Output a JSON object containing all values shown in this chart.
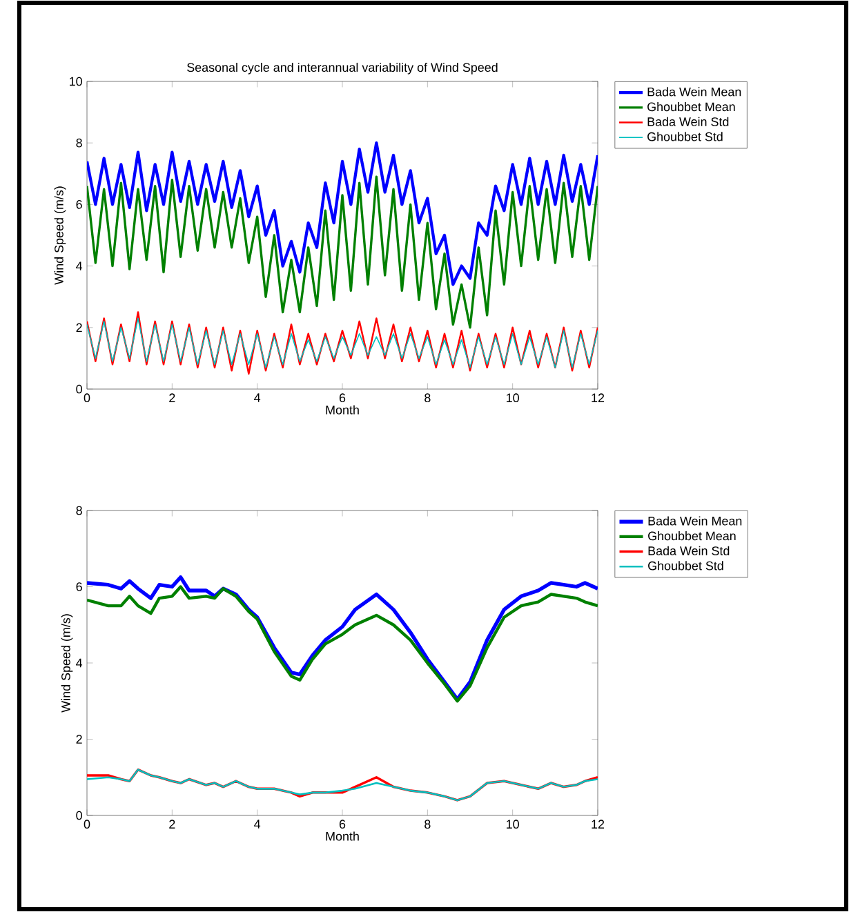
{
  "chart_data": [
    {
      "type": "line",
      "title": "Seasonal cycle and interannual variability of Wind Speed",
      "xlabel": "Month",
      "ylabel": "Wind Speed (m/s)",
      "xlim": [
        0,
        12
      ],
      "ylim": [
        0,
        10
      ],
      "xticks": [
        0,
        2,
        4,
        6,
        8,
        10,
        12
      ],
      "yticks": [
        0,
        2,
        4,
        6,
        8,
        10
      ],
      "grid": false,
      "legend": "right",
      "marker": "none",
      "line_style": "solid",
      "x": [
        0,
        0.2,
        0.4,
        0.6,
        0.8,
        1.0,
        1.2,
        1.4,
        1.6,
        1.8,
        2.0,
        2.2,
        2.4,
        2.6,
        2.8,
        3.0,
        3.2,
        3.4,
        3.6,
        3.8,
        4.0,
        4.2,
        4.4,
        4.6,
        4.8,
        5.0,
        5.2,
        5.4,
        5.6,
        5.8,
        6.0,
        6.2,
        6.4,
        6.6,
        6.8,
        7.0,
        7.2,
        7.4,
        7.6,
        7.8,
        8.0,
        8.2,
        8.4,
        8.6,
        8.8,
        9.0,
        9.2,
        9.4,
        9.6,
        9.8,
        10.0,
        10.2,
        10.4,
        10.6,
        10.8,
        11.0,
        11.2,
        11.4,
        11.6,
        11.8,
        12.0
      ],
      "series": [
        {
          "name": "Bada Wein Mean",
          "color": "#0000ff",
          "values": [
            7.4,
            6.0,
            7.5,
            6.0,
            7.3,
            5.9,
            7.7,
            5.8,
            7.3,
            6.0,
            7.7,
            6.1,
            7.4,
            6.0,
            7.3,
            6.1,
            7.4,
            5.9,
            7.1,
            5.6,
            6.6,
            5.0,
            5.8,
            4.0,
            4.8,
            3.8,
            5.4,
            4.6,
            6.7,
            5.4,
            7.4,
            6.0,
            7.8,
            6.4,
            8.0,
            6.4,
            7.6,
            6.0,
            7.1,
            5.4,
            6.2,
            4.4,
            5.0,
            3.4,
            4.0,
            3.6,
            5.4,
            5.0,
            6.6,
            5.8,
            7.3,
            6.0,
            7.5,
            6.0,
            7.4,
            6.0,
            7.6,
            6.1,
            7.3,
            6.0,
            7.6
          ]
        },
        {
          "name": "Ghoubbet Mean",
          "color": "#008000",
          "values": [
            6.6,
            4.1,
            6.5,
            4.0,
            6.7,
            3.9,
            6.5,
            4.2,
            6.6,
            3.8,
            6.8,
            4.3,
            6.6,
            4.5,
            6.5,
            4.6,
            6.4,
            4.6,
            6.2,
            4.1,
            5.6,
            3.0,
            5.0,
            2.5,
            4.2,
            2.5,
            4.6,
            2.7,
            5.8,
            2.9,
            6.3,
            3.2,
            6.7,
            3.4,
            6.9,
            3.7,
            6.5,
            3.2,
            6.0,
            2.9,
            5.4,
            2.6,
            4.4,
            2.1,
            3.4,
            2.0,
            4.6,
            2.4,
            5.8,
            3.4,
            6.4,
            4.0,
            6.6,
            4.2,
            6.5,
            4.1,
            6.7,
            4.3,
            6.6,
            4.2,
            6.6
          ]
        },
        {
          "name": "Bada Wein Std",
          "color": "#ff0000",
          "values": [
            2.2,
            0.9,
            2.3,
            0.8,
            2.1,
            0.9,
            2.5,
            0.8,
            2.2,
            0.8,
            2.2,
            0.8,
            2.1,
            0.7,
            2.0,
            0.7,
            2.0,
            0.6,
            1.9,
            0.5,
            1.9,
            0.6,
            1.8,
            0.7,
            2.1,
            0.8,
            1.8,
            0.8,
            1.8,
            0.9,
            1.9,
            1.0,
            2.2,
            1.0,
            2.3,
            1.0,
            2.1,
            0.9,
            2.0,
            0.9,
            1.9,
            0.7,
            1.8,
            0.7,
            1.9,
            0.6,
            1.8,
            0.7,
            1.8,
            0.7,
            2.0,
            0.8,
            1.9,
            0.7,
            1.8,
            0.7,
            2.0,
            0.6,
            1.9,
            0.7,
            2.0
          ]
        },
        {
          "name": "Ghoubbet Std",
          "color": "#00bfbf",
          "values": [
            2.1,
            1.0,
            2.2,
            0.9,
            2.0,
            1.0,
            2.3,
            0.9,
            2.1,
            0.9,
            2.1,
            0.9,
            2.0,
            0.8,
            1.9,
            0.8,
            1.9,
            0.8,
            1.8,
            0.8,
            1.8,
            0.7,
            1.7,
            0.8,
            1.8,
            0.9,
            1.6,
            0.9,
            1.7,
            1.0,
            1.7,
            1.1,
            1.8,
            1.1,
            1.7,
            1.1,
            1.8,
            1.0,
            1.8,
            1.0,
            1.7,
            0.8,
            1.6,
            0.8,
            1.6,
            0.7,
            1.7,
            0.8,
            1.7,
            0.8,
            1.8,
            0.8,
            1.7,
            0.8,
            1.7,
            0.7,
            1.9,
            0.7,
            1.8,
            0.8,
            1.9
          ]
        }
      ]
    },
    {
      "type": "line",
      "xlabel": "Month",
      "ylabel": "Wind Speed (m/s)",
      "xlim": [
        0,
        12
      ],
      "ylim": [
        0,
        8
      ],
      "xticks": [
        0,
        2,
        4,
        6,
        8,
        10,
        12
      ],
      "yticks": [
        0,
        2,
        4,
        6,
        8
      ],
      "grid": false,
      "legend": "right",
      "marker": "none",
      "line_style": "solid",
      "x": [
        0,
        0.5,
        0.8,
        1.0,
        1.2,
        1.5,
        1.7,
        2.0,
        2.2,
        2.4,
        2.8,
        3.0,
        3.2,
        3.5,
        3.8,
        4.0,
        4.4,
        4.8,
        5.0,
        5.3,
        5.6,
        6.0,
        6.3,
        6.8,
        7.2,
        7.6,
        8.0,
        8.4,
        8.7,
        9.0,
        9.4,
        9.8,
        10.2,
        10.6,
        10.9,
        11.2,
        11.5,
        11.7,
        12.0
      ],
      "series": [
        {
          "name": "Bada Wein Mean",
          "color": "#0000ff",
          "values": [
            6.1,
            6.05,
            5.95,
            6.15,
            5.95,
            5.7,
            6.05,
            6.0,
            6.25,
            5.9,
            5.9,
            5.75,
            5.95,
            5.8,
            5.4,
            5.2,
            4.4,
            3.75,
            3.7,
            4.2,
            4.6,
            4.95,
            5.4,
            5.8,
            5.4,
            4.8,
            4.1,
            3.5,
            3.05,
            3.5,
            4.6,
            5.4,
            5.75,
            5.9,
            6.1,
            6.05,
            6.0,
            6.1,
            5.95
          ]
        },
        {
          "name": "Ghoubbet Mean",
          "color": "#008000",
          "values": [
            5.65,
            5.5,
            5.5,
            5.75,
            5.5,
            5.3,
            5.7,
            5.75,
            6.0,
            5.7,
            5.75,
            5.7,
            5.95,
            5.75,
            5.35,
            5.15,
            4.3,
            3.65,
            3.55,
            4.1,
            4.5,
            4.75,
            5.0,
            5.25,
            5.0,
            4.6,
            4.0,
            3.45,
            3.0,
            3.4,
            4.4,
            5.2,
            5.5,
            5.6,
            5.8,
            5.75,
            5.7,
            5.6,
            5.5
          ]
        },
        {
          "name": "Bada Wein Std",
          "color": "#ff0000",
          "values": [
            1.05,
            1.05,
            0.95,
            0.9,
            1.2,
            1.05,
            1.0,
            0.9,
            0.85,
            0.95,
            0.8,
            0.85,
            0.75,
            0.9,
            0.75,
            0.7,
            0.7,
            0.6,
            0.5,
            0.6,
            0.6,
            0.6,
            0.75,
            1.0,
            0.75,
            0.65,
            0.6,
            0.5,
            0.4,
            0.5,
            0.85,
            0.9,
            0.8,
            0.7,
            0.85,
            0.75,
            0.8,
            0.9,
            1.0
          ]
        },
        {
          "name": "Ghoubbet Std",
          "color": "#00bfbf",
          "values": [
            0.95,
            1.0,
            0.95,
            0.9,
            1.2,
            1.05,
            1.0,
            0.9,
            0.85,
            0.95,
            0.8,
            0.85,
            0.75,
            0.9,
            0.75,
            0.7,
            0.7,
            0.6,
            0.55,
            0.6,
            0.6,
            0.65,
            0.7,
            0.85,
            0.75,
            0.65,
            0.6,
            0.5,
            0.4,
            0.5,
            0.85,
            0.9,
            0.8,
            0.7,
            0.85,
            0.75,
            0.8,
            0.9,
            0.95
          ]
        }
      ]
    }
  ]
}
